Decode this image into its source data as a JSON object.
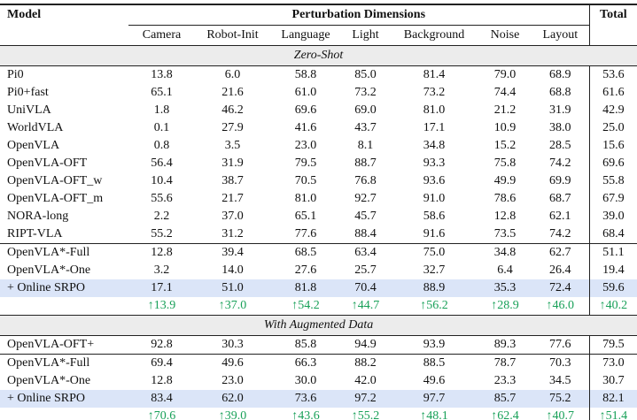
{
  "table": {
    "header": {
      "model": "Model",
      "group": "Perturbation Dimensions",
      "total": "Total",
      "columns": [
        "Camera",
        "Robot-Init",
        "Language",
        "Light",
        "Background",
        "Noise",
        "Layout"
      ]
    },
    "sections": [
      {
        "title": "Zero-Shot",
        "groups": [
          {
            "rows": [
              {
                "model": "Pi0",
                "values": [
                  "13.8",
                  "6.0",
                  "58.8",
                  "85.0",
                  "81.4",
                  "79.0",
                  "68.9",
                  "53.6"
                ]
              },
              {
                "model": "Pi0+fast",
                "values": [
                  "65.1",
                  "21.6",
                  "61.0",
                  "73.2",
                  "73.2",
                  "74.4",
                  "68.8",
                  "61.6"
                ]
              },
              {
                "model": "UniVLA",
                "values": [
                  "1.8",
                  "46.2",
                  "69.6",
                  "69.0",
                  "81.0",
                  "21.2",
                  "31.9",
                  "42.9"
                ]
              },
              {
                "model": "WorldVLA",
                "values": [
                  "0.1",
                  "27.9",
                  "41.6",
                  "43.7",
                  "17.1",
                  "10.9",
                  "38.0",
                  "25.0"
                ]
              },
              {
                "model": "OpenVLA",
                "values": [
                  "0.8",
                  "3.5",
                  "23.0",
                  "8.1",
                  "34.8",
                  "15.2",
                  "28.5",
                  "15.6"
                ]
              },
              {
                "model": "OpenVLA-OFT",
                "values": [
                  "56.4",
                  "31.9",
                  "79.5",
                  "88.7",
                  "93.3",
                  "75.8",
                  "74.2",
                  "69.6"
                ]
              },
              {
                "model": "OpenVLA-OFT_w",
                "values": [
                  "10.4",
                  "38.7",
                  "70.5",
                  "76.8",
                  "93.6",
                  "49.9",
                  "69.9",
                  "55.8"
                ]
              },
              {
                "model": "OpenVLA-OFT_m",
                "values": [
                  "55.6",
                  "21.7",
                  "81.0",
                  "92.7",
                  "91.0",
                  "78.6",
                  "68.7",
                  "67.9"
                ]
              },
              {
                "model": "NORA-long",
                "values": [
                  "2.2",
                  "37.0",
                  "65.1",
                  "45.7",
                  "58.6",
                  "12.8",
                  "62.1",
                  "39.0"
                ]
              },
              {
                "model": "RIPT-VLA",
                "values": [
                  "55.2",
                  "31.2",
                  "77.6",
                  "88.4",
                  "91.6",
                  "73.5",
                  "74.2",
                  "68.4"
                ]
              }
            ]
          },
          {
            "rows": [
              {
                "model": "OpenVLA*-Full",
                "values": [
                  "12.8",
                  "39.4",
                  "68.5",
                  "63.4",
                  "75.0",
                  "34.8",
                  "62.7",
                  "51.1"
                ]
              },
              {
                "model": "OpenVLA*-One",
                "values": [
                  "3.2",
                  "14.0",
                  "27.6",
                  "25.7",
                  "32.7",
                  "6.4",
                  "26.4",
                  "19.4"
                ]
              },
              {
                "model": "+ Online SRPO",
                "kind": "highlight",
                "values": [
                  "17.1",
                  "51.0",
                  "81.8",
                  "70.4",
                  "88.9",
                  "35.3",
                  "72.4",
                  "59.6"
                ]
              },
              {
                "kind": "gain",
                "values": [
                  "↑13.9",
                  "↑37.0",
                  "↑54.2",
                  "↑44.7",
                  "↑56.2",
                  "↑28.9",
                  "↑46.0",
                  "↑40.2"
                ]
              }
            ]
          }
        ]
      },
      {
        "title": "With Augmented Data",
        "groups": [
          {
            "rows": [
              {
                "model": "OpenVLA-OFT+",
                "values": [
                  "92.8",
                  "30.3",
                  "85.8",
                  "94.9",
                  "93.9",
                  "89.3",
                  "77.6",
                  "79.5"
                ]
              }
            ]
          },
          {
            "rows": [
              {
                "model": "OpenVLA*-Full",
                "values": [
                  "69.4",
                  "49.6",
                  "66.3",
                  "88.2",
                  "88.5",
                  "78.7",
                  "70.3",
                  "73.0"
                ]
              },
              {
                "model": "OpenVLA*-One",
                "values": [
                  "12.8",
                  "23.0",
                  "30.0",
                  "42.0",
                  "49.6",
                  "23.3",
                  "34.5",
                  "30.7"
                ]
              },
              {
                "model": "+ Online SRPO",
                "kind": "highlight",
                "values": [
                  "83.4",
                  "62.0",
                  "73.6",
                  "97.2",
                  "97.7",
                  "85.7",
                  "75.2",
                  "82.1"
                ]
              },
              {
                "kind": "gain",
                "values": [
                  "↑70.6",
                  "↑39.0",
                  "↑43.6",
                  "↑55.2",
                  "↑48.1",
                  "↑62.4",
                  "↑40.7",
                  "↑51.4"
                ]
              }
            ]
          }
        ]
      }
    ]
  }
}
